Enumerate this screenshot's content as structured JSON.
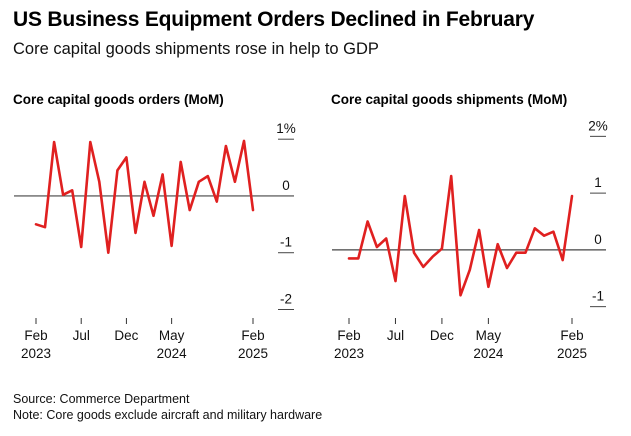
{
  "header": {
    "title": "US Business Equipment Orders Declined in February",
    "subtitle": "Core capital goods shipments rose in help to GDP"
  },
  "footer": {
    "source": "Source: Commerce Department",
    "note": "Note: Core goods exclude aircraft and military hardware"
  },
  "colors": {
    "line": "#e02020",
    "zero_line": "#444444",
    "grid": "#cccccc"
  },
  "chart_data": [
    {
      "type": "line",
      "title": "Core capital goods orders (MoM)",
      "x_labels": [
        {
          "index": 0,
          "line1": "Feb",
          "line2": "2023"
        },
        {
          "index": 5,
          "line1": "Jul",
          "line2": ""
        },
        {
          "index": 10,
          "line1": "Dec",
          "line2": ""
        },
        {
          "index": 15,
          "line1": "May",
          "line2": "2024"
        },
        {
          "index": 24,
          "line1": "Feb",
          "line2": "2025"
        }
      ],
      "y_ticks": [
        {
          "value": 1,
          "label": "1%"
        },
        {
          "value": 0,
          "label": "0"
        },
        {
          "value": -1,
          "label": "-1"
        },
        {
          "value": -2,
          "label": "-2"
        }
      ],
      "ylim": [
        -2.15,
        1.25
      ],
      "series": [
        {
          "values": [
            -0.5,
            -0.55,
            0.95,
            0.02,
            0.1,
            -0.9,
            0.95,
            0.25,
            -1.0,
            0.45,
            0.68,
            -0.65,
            0.25,
            -0.35,
            0.38,
            -0.88,
            0.6,
            -0.25,
            0.25,
            0.35,
            -0.1,
            0.88,
            0.25,
            0.97,
            -0.25
          ]
        }
      ]
    },
    {
      "type": "line",
      "title": "Core capital goods shipments (MoM)",
      "x_labels": [
        {
          "index": 0,
          "line1": "Feb",
          "line2": "2023"
        },
        {
          "index": 5,
          "line1": "Jul",
          "line2": ""
        },
        {
          "index": 10,
          "line1": "Dec",
          "line2": ""
        },
        {
          "index": 15,
          "line1": "May",
          "line2": "2024"
        },
        {
          "index": 24,
          "line1": "Feb",
          "line2": "2025"
        }
      ],
      "y_ticks": [
        {
          "value": 2,
          "label": "2%"
        },
        {
          "value": 1,
          "label": "1"
        },
        {
          "value": 0,
          "label": "0"
        },
        {
          "value": -1,
          "label": "-1"
        }
      ],
      "ylim": [
        -1.2,
        2.2
      ],
      "series": [
        {
          "values": [
            -0.15,
            -0.15,
            0.5,
            0.05,
            0.2,
            -0.55,
            0.95,
            -0.05,
            -0.3,
            -0.12,
            0.02,
            1.3,
            -0.8,
            -0.35,
            0.35,
            -0.65,
            0.1,
            -0.32,
            -0.05,
            -0.05,
            0.38,
            0.25,
            0.32,
            -0.18,
            0.95
          ]
        }
      ]
    }
  ]
}
